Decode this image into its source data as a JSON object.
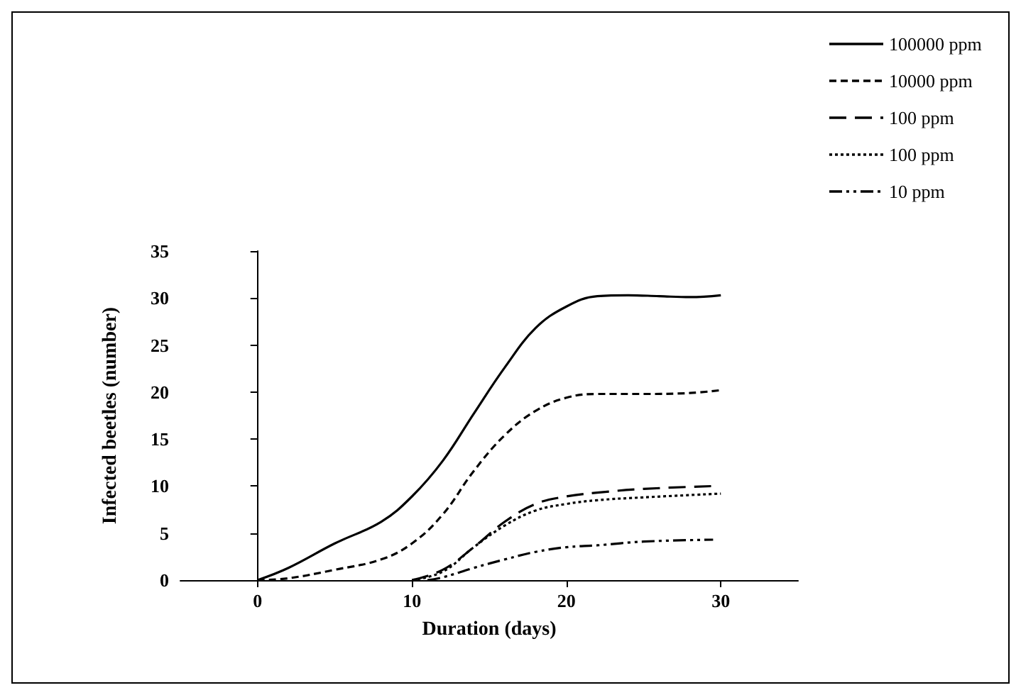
{
  "chart_data": {
    "type": "line",
    "xlabel": "Duration (days)",
    "ylabel": "Infected beetles (number)",
    "xlim": [
      -5,
      35
    ],
    "xticks": [
      0,
      10,
      20,
      30
    ],
    "ylim": [
      0,
      35
    ],
    "yticks": [
      0,
      5,
      10,
      15,
      20,
      25,
      30,
      35
    ],
    "legend": "top right",
    "marker": "none",
    "series": [
      {
        "name": "100000 ppm",
        "color": "#000000",
        "line_style": "solid",
        "x": [
          0,
          2,
          5,
          8,
          10,
          12,
          14,
          16,
          18,
          20,
          22,
          24,
          26,
          28,
          30
        ],
        "values": [
          0,
          1.3,
          3.9,
          6.2,
          8.9,
          12.7,
          17.7,
          22.6,
          26.8,
          29.1,
          30.2,
          30.3,
          30.2,
          30.1,
          30.3
        ]
      },
      {
        "name": "10000 ppm",
        "color": "#000000",
        "line_style": "dashed",
        "x": [
          0,
          2,
          5,
          8,
          10,
          12,
          14,
          16,
          18,
          20,
          22,
          25,
          28,
          30
        ],
        "values": [
          0,
          0.2,
          1.1,
          2.2,
          3.9,
          7,
          11.6,
          15.4,
          18,
          19.4,
          19.8,
          19.8,
          19.9,
          20.2
        ]
      },
      {
        "name": "100 ppm",
        "color": "#000000",
        "line_style": "longdashed",
        "x": [
          10,
          12,
          14,
          16,
          18,
          20,
          22,
          25,
          29.5
        ],
        "values": [
          0,
          1.1,
          3.5,
          6.2,
          8.1,
          8.9,
          9.3,
          9.7,
          10
        ]
      },
      {
        "name": "100 ppm",
        "color": "#000000",
        "line_style": "dotted",
        "x": [
          10,
          12,
          14,
          16,
          18,
          20,
          22,
          25,
          30
        ],
        "values": [
          0,
          0.9,
          3.5,
          5.8,
          7.4,
          8.1,
          8.5,
          8.8,
          9.2
        ]
      },
      {
        "name": "10 ppm",
        "color": "#000000",
        "line_style": "dashdot",
        "x": [
          11,
          12,
          14,
          16,
          18,
          20,
          22,
          25,
          29.5
        ],
        "values": [
          0,
          0.3,
          1.3,
          2.2,
          3,
          3.5,
          3.7,
          4.1,
          4.3
        ]
      }
    ]
  }
}
